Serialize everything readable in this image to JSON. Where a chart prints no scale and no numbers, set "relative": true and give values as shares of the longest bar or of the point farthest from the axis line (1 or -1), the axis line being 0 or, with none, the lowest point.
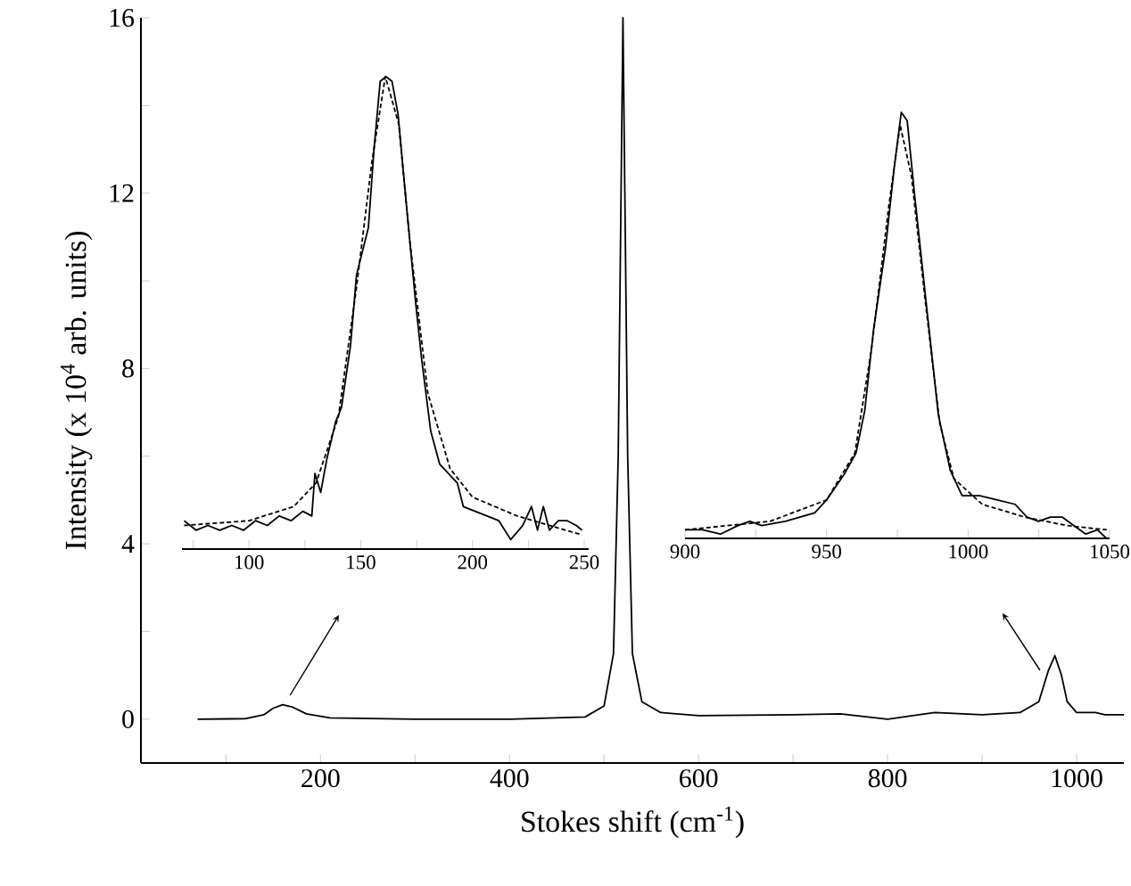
{
  "chart_data": [
    {
      "type": "line",
      "xlabel": "Stokes shift (cm$^{-1}$)",
      "ylabel": "Intensity (x 10$^{4}$ arb. units)",
      "xlim": [
        10,
        1050
      ],
      "ylim": [
        -1,
        16
      ],
      "xticks": [
        {
          "value": 100,
          "label": null
        },
        200,
        {
          "value": 300,
          "label": null
        },
        400,
        {
          "value": 500,
          "label": null
        },
        600,
        {
          "value": 700,
          "label": null
        },
        800,
        {
          "value": 900,
          "label": null
        },
        1000
      ],
      "yticks": [
        0,
        {
          "value": 2,
          "label": null
        },
        4,
        {
          "value": 6,
          "label": null
        },
        8,
        {
          "value": 10,
          "label": null
        },
        12,
        {
          "value": 14,
          "label": null
        },
        16
      ],
      "grid": false,
      "marker": "none",
      "series": [
        {
          "color": "#000000",
          "line_style": "solid",
          "x": [
            70,
            120,
            140,
            150,
            160,
            170,
            185,
            210,
            300,
            400,
            480,
            500,
            510,
            515,
            518,
            520,
            522,
            525,
            530,
            540,
            560,
            600,
            700,
            750,
            800,
            850,
            900,
            940,
            960,
            970,
            977,
            984,
            990,
            1000,
            1020,
            1030,
            1050
          ],
          "values": [
            0,
            0.01,
            0.1,
            0.25,
            0.33,
            0.28,
            0.12,
            0.03,
            0,
            0,
            0.05,
            0.3,
            1.5,
            6,
            12,
            16,
            12,
            6,
            1.5,
            0.4,
            0.15,
            0.08,
            0.1,
            0.12,
            0,
            0.15,
            0.1,
            0.15,
            0.4,
            1.1,
            1.45,
            1.0,
            0.4,
            0.15,
            0.15,
            0.1,
            0.1
          ]
        }
      ]
    },
    {
      "type": "line",
      "relative": true,
      "tick_labels": "x",
      "xlim": [
        70,
        252
      ],
      "xticks": [
        {
          "value": 75,
          "label": null
        },
        100,
        {
          "value": 125,
          "label": null
        },
        150,
        {
          "value": 175,
          "label": null
        },
        200,
        {
          "value": 225,
          "label": null
        },
        250
      ],
      "grid": false,
      "marker": "none",
      "series": [
        {
          "color": "#000000",
          "line_style": "solid",
          "x": [
            71,
            76.3,
            81.6,
            86.9,
            92.3,
            97.6,
            102.9,
            108.2,
            113.5,
            118.8,
            124.1,
            128.1,
            129.5,
            132.1,
            134.8,
            138.8,
            141.4,
            145.4,
            148.1,
            153.4,
            156.0,
            158.7,
            161.3,
            164.0,
            166.7,
            170.6,
            174.6,
            177.3,
            181.3,
            185.3,
            189.2,
            193.2,
            195.9,
            201.2,
            206.5,
            211.8,
            217.1,
            222.5,
            226.4,
            229.1,
            231.7,
            234.4,
            238.4,
            242.4,
            246.4,
            249.0
          ],
          "values": [
            0.06,
            0.04,
            0.05,
            0.04,
            0.05,
            0.04,
            0.06,
            0.05,
            0.07,
            0.06,
            0.08,
            0.07,
            0.16,
            0.12,
            0.19,
            0.27,
            0.3,
            0.43,
            0.58,
            0.68,
            0.85,
            0.99,
            1.0,
            0.99,
            0.92,
            0.72,
            0.52,
            0.4,
            0.25,
            0.18,
            0.16,
            0.14,
            0.09,
            0.08,
            0.07,
            0.06,
            0.02,
            0.05,
            0.09,
            0.04,
            0.09,
            0.04,
            0.06,
            0.06,
            0.05,
            0.04
          ]
        },
        {
          "color": "#000000",
          "line_style": "dashed",
          "x": [
            71,
            100,
            120,
            130,
            140,
            148,
            155,
            161,
            167,
            172,
            180,
            190,
            200,
            220,
            249
          ],
          "values": [
            0.05,
            0.06,
            0.09,
            0.14,
            0.28,
            0.55,
            0.82,
            1.0,
            0.9,
            0.65,
            0.33,
            0.17,
            0.11,
            0.07,
            0.03
          ]
        }
      ]
    },
    {
      "type": "line",
      "relative": true,
      "tick_labels": "x",
      "xlim": [
        900,
        1050
      ],
      "xticks": [
        900,
        {
          "value": 925,
          "label": null
        },
        950,
        {
          "value": 975,
          "label": null
        },
        1000,
        {
          "value": 1025,
          "label": null
        },
        1050
      ],
      "grid": false,
      "marker": "none",
      "series": [
        {
          "color": "#000000",
          "line_style": "solid",
          "x": [
            900,
            906.2,
            912.5,
            918.7,
            922.9,
            927.1,
            935.4,
            945.8,
            950.0,
            956.2,
            960.4,
            963.5,
            966.6,
            970.8,
            973.9,
            976.4,
            978.5,
            981.2,
            985.4,
            989.5,
            993.7,
            997.9,
            1004.1,
            1010.3,
            1016.6,
            1020.8,
            1024.9,
            1029.1,
            1033.2,
            1037.4,
            1041.6,
            1045.7,
            1048.9
          ],
          "values": [
            0.02,
            0.02,
            0.01,
            0.03,
            0.04,
            0.03,
            0.04,
            0.06,
            0.09,
            0.15,
            0.2,
            0.3,
            0.49,
            0.68,
            0.87,
            1.0,
            0.98,
            0.8,
            0.54,
            0.29,
            0.16,
            0.1,
            0.1,
            0.09,
            0.08,
            0.05,
            0.04,
            0.05,
            0.05,
            0.03,
            0.01,
            0.02,
            0.0
          ]
        },
        {
          "color": "#000000",
          "line_style": "dashed",
          "x": [
            900,
            930,
            950,
            960,
            966,
            972,
            976,
            980,
            985,
            990,
            995,
            1005,
            1020,
            1035,
            1049
          ],
          "values": [
            0.02,
            0.04,
            0.09,
            0.2,
            0.45,
            0.78,
            0.97,
            0.85,
            0.55,
            0.27,
            0.14,
            0.08,
            0.05,
            0.03,
            0.02
          ]
        }
      ]
    }
  ]
}
